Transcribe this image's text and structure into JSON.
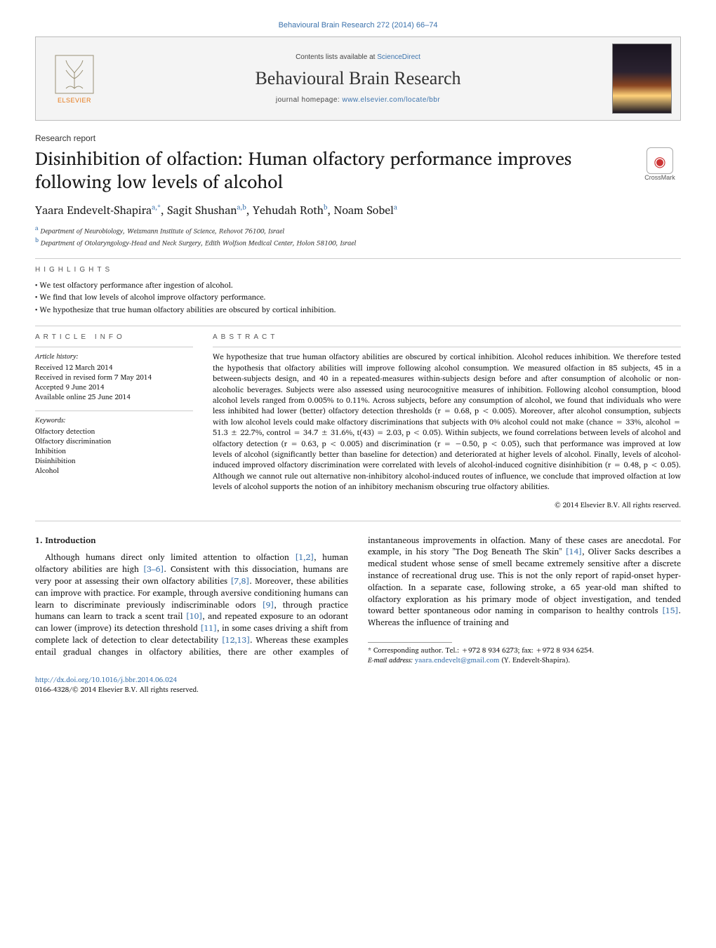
{
  "citation": "Behavioural Brain Research 272 (2014) 66–74",
  "header": {
    "contents_prefix": "Contents lists available at ",
    "contents_link": "ScienceDirect",
    "journal_title": "Behavioural Brain Research",
    "homepage_prefix": "journal homepage: ",
    "homepage_link": "www.elsevier.com/locate/bbr",
    "publisher": "ELSEVIER"
  },
  "report_type": "Research report",
  "title": "Disinhibition of olfaction: Human olfactory performance improves following low levels of alcohol",
  "crossmark": "CrossMark",
  "authors_html": "Yaara Endevelt-Shapira<sup>a,*</sup>, Sagit Shushan<sup>a,b</sup>, Yehudah Roth<sup>b</sup>, Noam Sobel<sup>a</sup>",
  "affiliations": [
    "a Department of Neurobiology, Weizmann Institute of Science, Rehovot 76100, Israel",
    "b Department of Otolaryngology-Head and Neck Surgery, Edith Wolfson Medical Center, Holon 58100, Israel"
  ],
  "highlights_label": "highlights",
  "highlights": [
    "We test olfactory performance after ingestion of alcohol.",
    "We find that low levels of alcohol improve olfactory performance.",
    "We hypothesize that true human olfactory abilities are obscured by cortical inhibition."
  ],
  "article_info_label": "article info",
  "history_label": "Article history:",
  "history": [
    "Received 12 March 2014",
    "Received in revised form 7 May 2014",
    "Accepted 9 June 2014",
    "Available online 25 June 2014"
  ],
  "keywords_label": "Keywords:",
  "keywords": [
    "Olfactory detection",
    "Olfactory discrimination",
    "Inhibition",
    "Disinhibition",
    "Alcohol"
  ],
  "abstract_label": "abstract",
  "abstract": "We hypothesize that true human olfactory abilities are obscured by cortical inhibition. Alcohol reduces inhibition. We therefore tested the hypothesis that olfactory abilities will improve following alcohol consumption. We measured olfaction in 85 subjects, 45 in a between-subjects design, and 40 in a repeated-measures within-subjects design before and after consumption of alcoholic or non-alcoholic beverages. Subjects were also assessed using neurocognitive measures of inhibition. Following alcohol consumption, blood alcohol levels ranged from 0.005% to 0.11%. Across subjects, before any consumption of alcohol, we found that individuals who were less inhibited had lower (better) olfactory detection thresholds (r = 0.68, p < 0.005). Moreover, after alcohol consumption, subjects with low alcohol levels could make olfactory discriminations that subjects with 0% alcohol could not make (chance = 33%, alcohol = 51.3 ± 22.7%, control = 34.7 ± 31.6%, t(43) = 2.03, p < 0.05). Within subjects, we found correlations between levels of alcohol and olfactory detection (r = 0.63, p < 0.005) and discrimination (r = −0.50, p < 0.05), such that performance was improved at low levels of alcohol (significantly better than baseline for detection) and deteriorated at higher levels of alcohol. Finally, levels of alcohol-induced improved olfactory discrimination were correlated with levels of alcohol-induced cognitive disinhibition (r = 0.48, p < 0.05). Although we cannot rule out alternative non-inhibitory alcohol-induced routes of influence, we conclude that improved olfaction at low levels of alcohol supports the notion of an inhibitory mechanism obscuring true olfactory abilities.",
  "copyright": "© 2014 Elsevier B.V. All rights reserved.",
  "intro_heading": "1. Introduction",
  "intro_html": "Although humans direct only limited attention to olfaction <a class='link'>[1,2]</a>, human olfactory abilities are high <a class='link'>[3–6]</a>. Consistent with this dissociation, humans are very poor at assessing their own olfactory abilities <a class='link'>[7,8]</a>. Moreover, these abilities can improve with practice. For example, through aversive conditioning humans can learn to discriminate previously indiscriminable odors <a class='link'>[9]</a>, through practice humans can learn to track a scent trail <a class='link'>[10]</a>, and repeated exposure to an odorant can lower (improve) its detection threshold <a class='link'>[11]</a>, in some cases driving a shift from complete lack of detection to clear detectability <a class='link'>[12,13]</a>. Whereas these examples entail gradual changes in olfactory abilities, there are other examples of instantaneous improvements in olfaction. Many of these cases are anecdotal. For example, in his story \"The Dog Beneath The Skin\" <a class='link'>[14]</a>, Oliver Sacks describes a medical student whose sense of smell became extremely sensitive after a discrete instance of recreational drug use. This is not the only report of rapid-onset hyper-olfaction. In a separate case, following stroke, a 65 year-old man shifted to olfactory exploration as his primary mode of object investigation, and tended toward better spontaneous odor naming in comparison to healthy controls <a class='link'>[15]</a>. Whereas the influence of training and",
  "footnote_corresponding": "* Corresponding author. Tel.: +972 8 934 6273; fax: +972 8 934 6254.",
  "footnote_email_label": "E-mail address: ",
  "footnote_email": "yaara.endevelt@gmail.com",
  "footnote_email_name": " (Y. Endevelt-Shapira).",
  "doi": "http://dx.doi.org/10.1016/j.bbr.2014.06.024",
  "issn_line": "0166-4328/© 2014 Elsevier B.V. All rights reserved.",
  "colors": {
    "link": "#3b72ac",
    "publisher": "#e67817",
    "text": "#1a1a1a",
    "rule": "#cccccc"
  }
}
